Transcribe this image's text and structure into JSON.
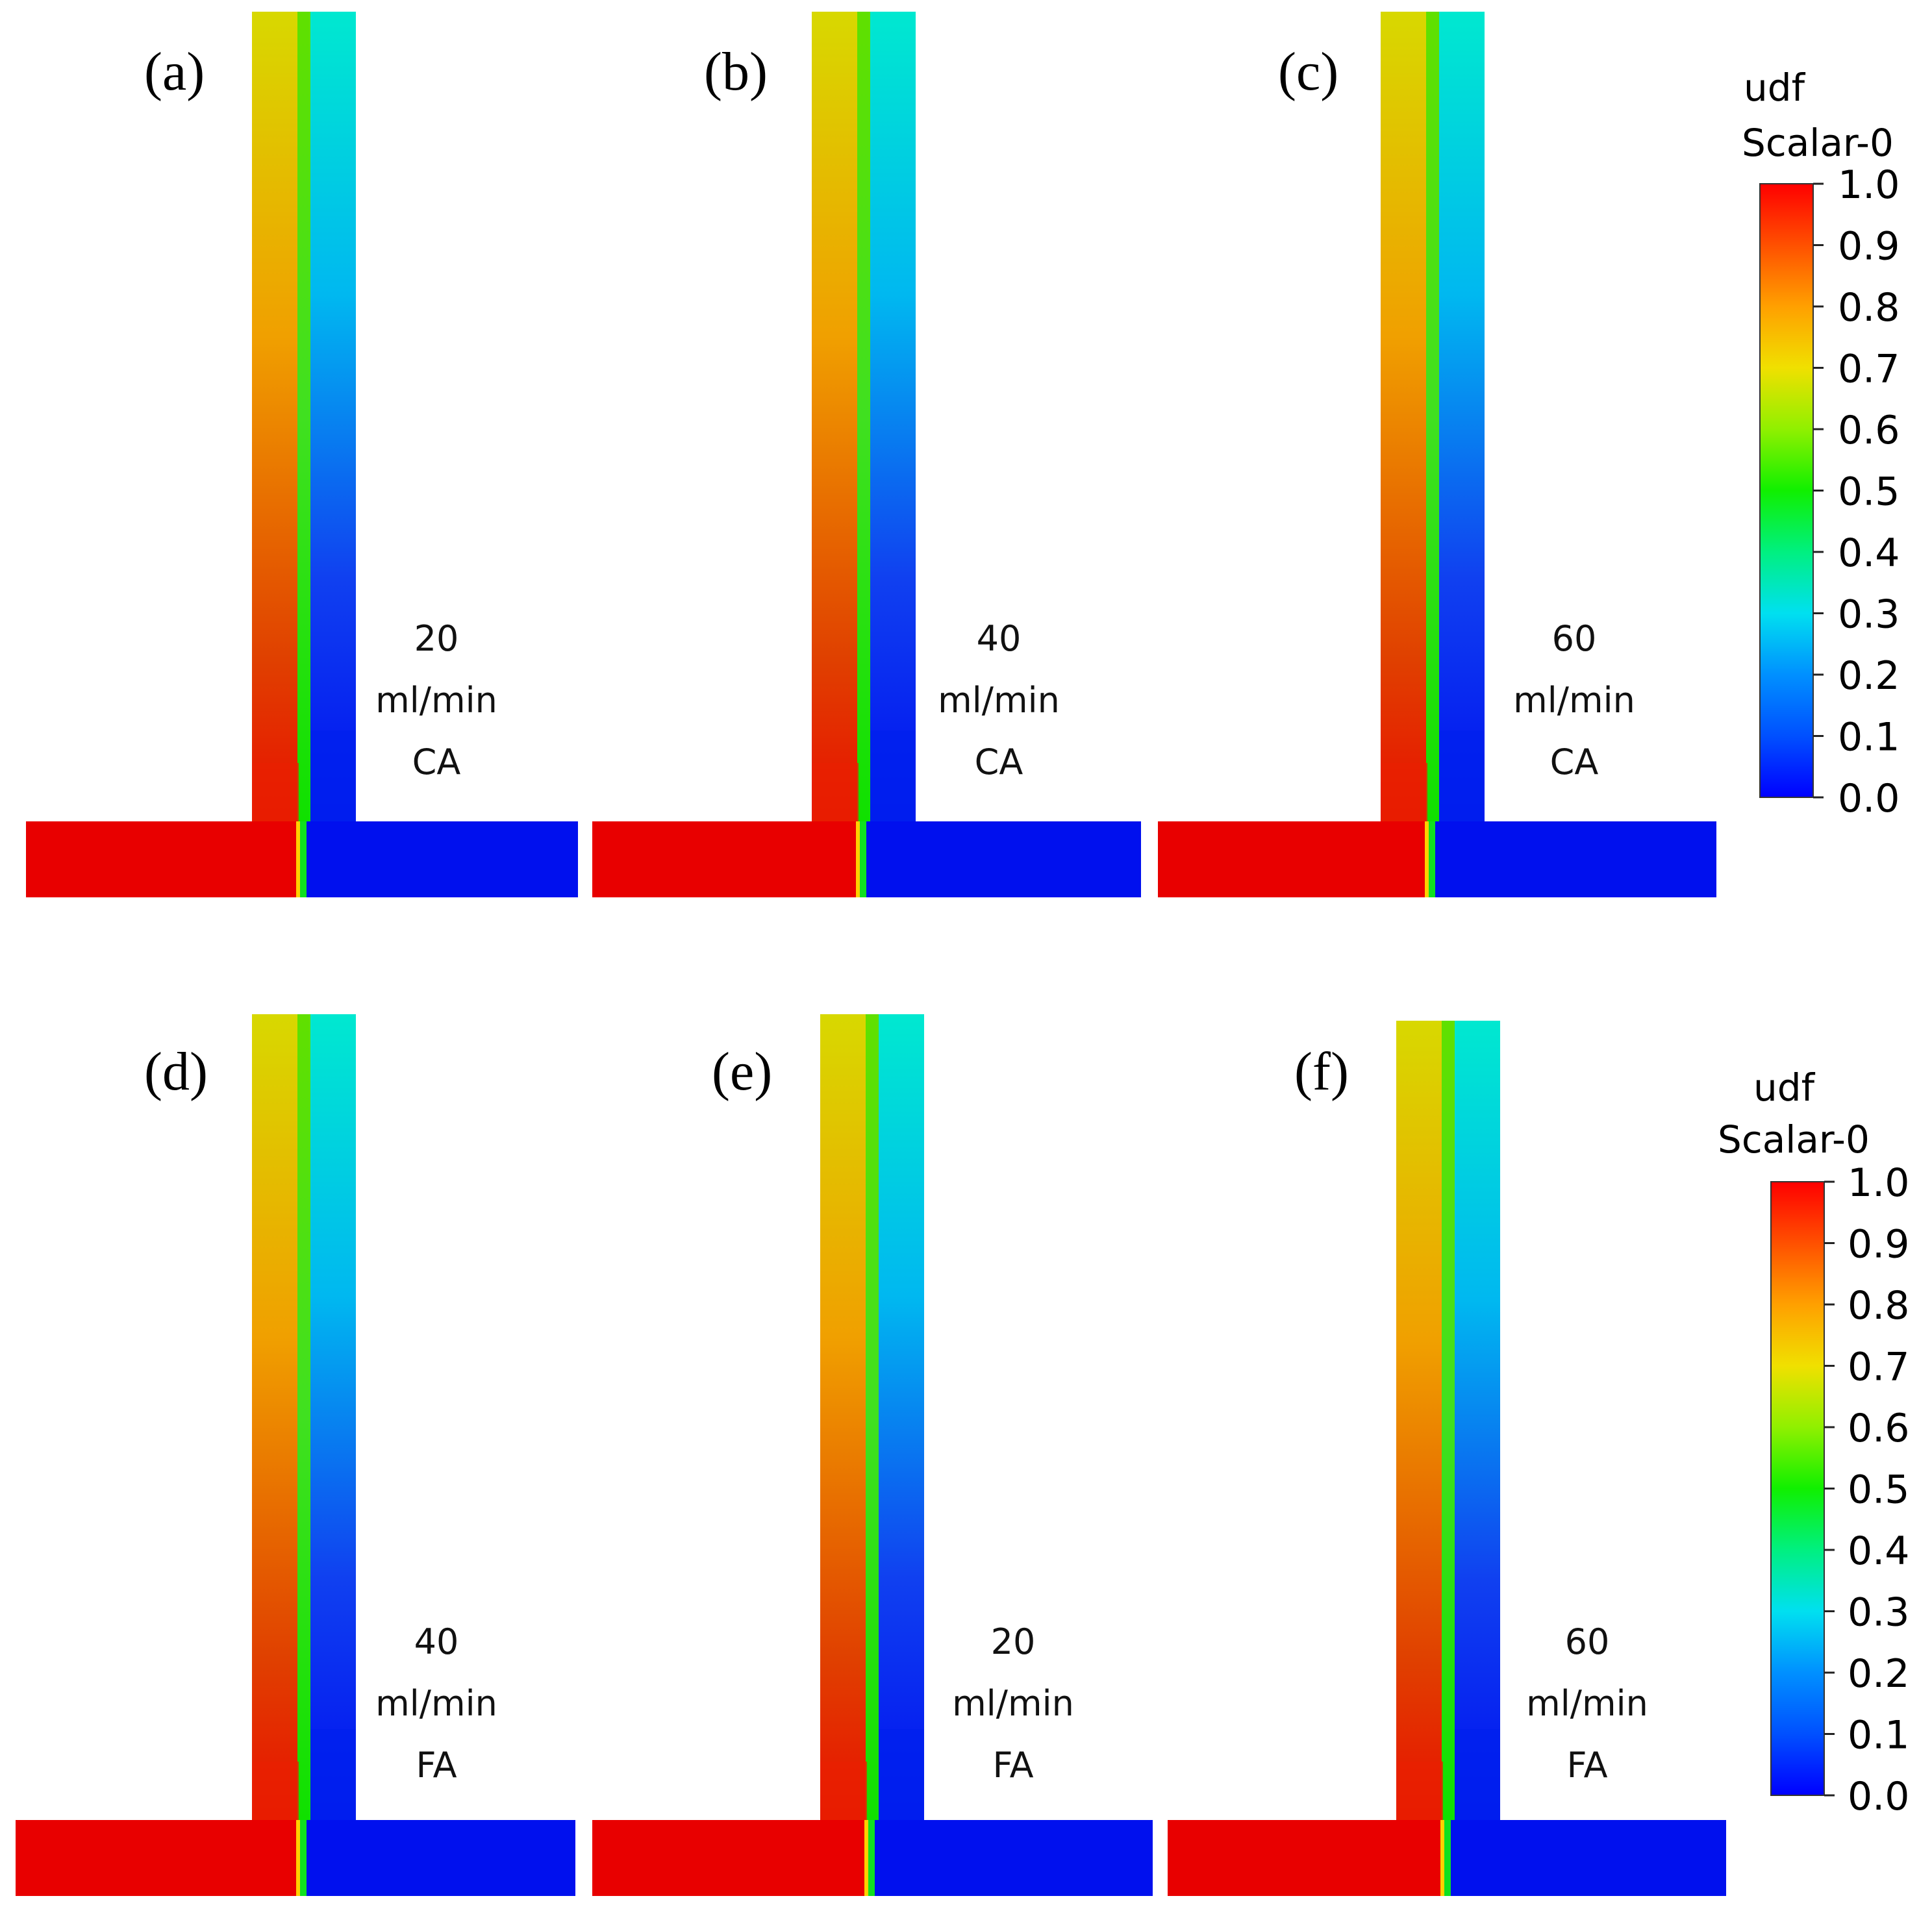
{
  "figure": {
    "description_labels": {
      "legend_title_line1": "udf",
      "legend_title_line2": "Scalar-0"
    },
    "colorbar": {
      "min": 0.0,
      "max": 1.0,
      "ticks": [
        "1.0",
        "0.9",
        "0.8",
        "0.7",
        "0.6",
        "0.5",
        "0.4",
        "0.3",
        "0.2",
        "0.1",
        "0.0"
      ],
      "colors": [
        "#0000ff",
        "#0070ff",
        "#00e6ff",
        "#00ff80",
        "#33ff00",
        "#c8ff00",
        "#ffd000",
        "#ff8000",
        "#ff3000",
        "#ff0000"
      ]
    },
    "panels": [
      {
        "label": "(a)",
        "flow_rate": "20",
        "unit": "ml/min",
        "acid": "CA"
      },
      {
        "label": "(b)",
        "flow_rate": "40",
        "unit": "ml/min",
        "acid": "CA"
      },
      {
        "label": "(c)",
        "flow_rate": "60",
        "unit": "ml/min",
        "acid": "CA"
      },
      {
        "label": "(d)",
        "flow_rate": "40",
        "unit": "ml/min",
        "acid": "FA"
      },
      {
        "label": "(e)",
        "flow_rate": "20",
        "unit": "ml/min",
        "acid": "FA"
      },
      {
        "label": "(f)",
        "flow_rate": "60",
        "unit": "ml/min",
        "acid": "FA"
      }
    ]
  }
}
